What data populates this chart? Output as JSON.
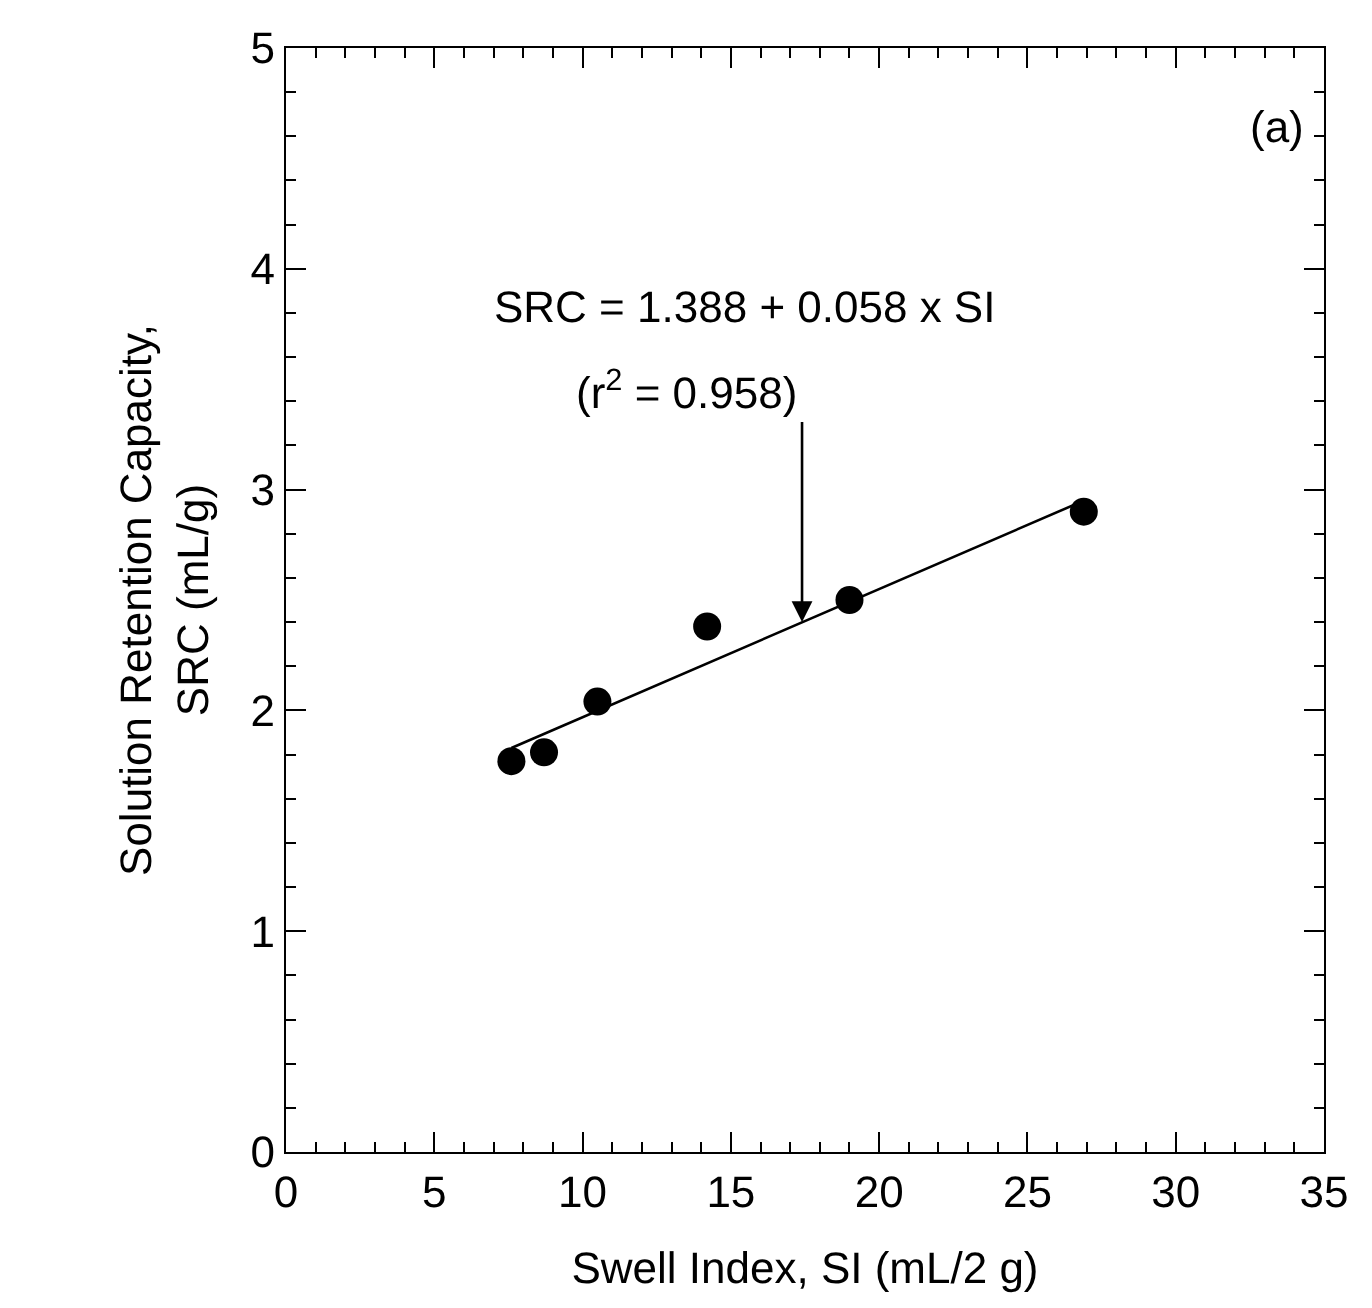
{
  "chart_data": {
    "type": "scatter",
    "xlabel": "Swell Index, SI (mL/2 g)",
    "ylabel": "Solution Retention Capacity,\nSRC (mL/g)",
    "xlim": [
      0,
      35
    ],
    "xticks": [
      0,
      5,
      10,
      15,
      20,
      25,
      30,
      35
    ],
    "ylim": [
      0,
      5
    ],
    "yticks": [
      0,
      1,
      2,
      3,
      4,
      5
    ],
    "marker": "circle",
    "series": [
      {
        "color": "#000000",
        "x": [
          7.6,
          8.7,
          10.5,
          14.2,
          19.0,
          26.9
        ],
        "values": [
          1.77,
          1.81,
          2.04,
          2.38,
          2.5,
          2.9
        ]
      },
      {
        "type": "line",
        "color": "#000000",
        "marker": "none",
        "line_style": "solid",
        "x": [
          7.6,
          26.9
        ],
        "values": [
          1.83,
          2.95
        ]
      }
    ],
    "annotations": [
      "SRC = 1.388 + 0.058 x SI",
      {
        "text": "(r$^{2}$ = 0.958)",
        "x": 17.4,
        "y": 2.4
      },
      "(a)"
    ]
  }
}
